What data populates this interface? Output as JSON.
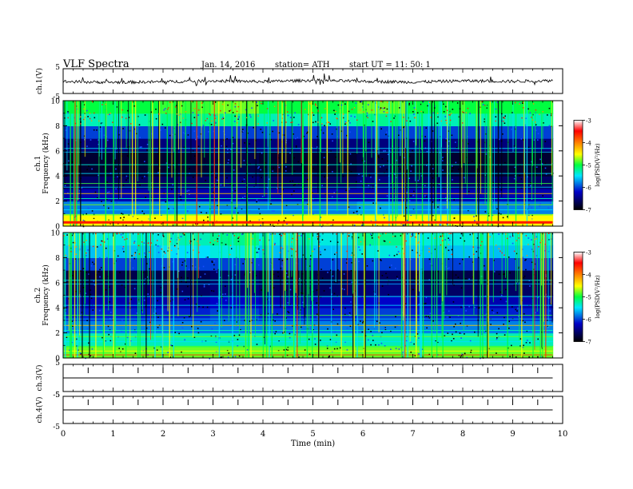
{
  "header": {
    "title": "VLF  Spectra",
    "date": "Jan. 14, 2016",
    "station": "station= ATH",
    "start_ut": "start  UT  =    11: 50: 1"
  },
  "xaxis": {
    "label": "Time  (min)",
    "ticks": [
      "0",
      "1",
      "2",
      "3",
      "4",
      "5",
      "6",
      "7",
      "8",
      "9",
      "10"
    ],
    "range": [
      0,
      10
    ],
    "data_end_min": 9.8
  },
  "panels": {
    "ch1_wave": {
      "ylabel": "ch.1(V)",
      "ticks": [
        "5",
        "-5"
      ],
      "range": [
        -5,
        5
      ]
    },
    "ch1_spec": {
      "ylabel": "ch.1",
      "ylabel2": "Frequency  (kHz)",
      "ticks": [
        "0",
        "2",
        "4",
        "6",
        "8",
        "10"
      ],
      "range": [
        0,
        10
      ]
    },
    "ch2_spec": {
      "ylabel": "ch.2",
      "ylabel2": "Frequency  (kHz)",
      "ticks": [
        "0",
        "2",
        "4",
        "6",
        "8",
        "10"
      ],
      "range": [
        0,
        10
      ]
    },
    "ch3_wave": {
      "ylabel": "ch.3(V)",
      "ticks": [
        "5",
        "-5"
      ],
      "range": [
        -5,
        5
      ]
    },
    "ch4_wave": {
      "ylabel": "ch.4(V)",
      "ticks": [
        "5",
        "-5"
      ],
      "range": [
        -5,
        5
      ]
    }
  },
  "colorbar": {
    "label": "log(PSD(V²/Hz)",
    "ticks": [
      "-3",
      "-4",
      "-5",
      "-6",
      "-7"
    ],
    "range": [
      -7,
      -3
    ],
    "colors": [
      "#000000",
      "#0000c8",
      "#00e6ff",
      "#00ff40",
      "#ffff00",
      "#ff8000",
      "#ff0000",
      "#ffffff"
    ]
  },
  "chart_data": [
    {
      "type": "line",
      "title": "",
      "xlabel": "",
      "ylabel": "ch.1(V)",
      "xlim": [
        0,
        10
      ],
      "ylim": [
        -5,
        5
      ],
      "series": [
        {
          "x": [
            0,
            1,
            2,
            3,
            4,
            5,
            6,
            7,
            8,
            9,
            9.8
          ],
          "values": [
            -0.2,
            -0.5,
            -0.3,
            0.1,
            -0.2,
            0.3,
            -0.1,
            -0.4,
            0.1,
            -0.1,
            0.2
          ]
        }
      ]
    },
    {
      "type": "heatmap",
      "title": "",
      "xlabel": "",
      "ylabel": "Frequency  (kHz)",
      "xlim": [
        0,
        10
      ],
      "ylim": [
        0,
        10
      ],
      "zlim": [
        -7,
        -3
      ],
      "x": [
        0,
        1,
        2,
        3,
        4,
        5,
        6,
        7,
        8,
        9
      ],
      "y": [
        0.5,
        1.5,
        2.5,
        3.5,
        4.5,
        5.5,
        6.5,
        7.5,
        8.5,
        9.5
      ],
      "z": [
        [
          -4.5,
          -4.5,
          -4.5,
          -4.5,
          -4.5,
          -4.5,
          -4.5,
          -4.5,
          -4.5,
          -4.5
        ],
        [
          -5.8,
          -5.8,
          -5.7,
          -5.8,
          -5.8,
          -5.8,
          -5.7,
          -5.8,
          -5.8,
          -5.8
        ],
        [
          -6.3,
          -6.3,
          -6.3,
          -6.3,
          -6.3,
          -6.3,
          -6.3,
          -6.3,
          -6.3,
          -6.3
        ],
        [
          -6.6,
          -6.6,
          -6.6,
          -6.5,
          -6.6,
          -6.6,
          -6.5,
          -6.6,
          -6.6,
          -6.6
        ],
        [
          -6.8,
          -6.8,
          -6.8,
          -6.7,
          -6.8,
          -6.8,
          -6.7,
          -6.8,
          -6.8,
          -6.8
        ],
        [
          -6.8,
          -6.8,
          -6.8,
          -6.7,
          -6.8,
          -6.8,
          -6.7,
          -6.8,
          -6.8,
          -6.8
        ],
        [
          -6.5,
          -6.5,
          -6.5,
          -6.5,
          -6.5,
          -6.5,
          -6.5,
          -6.5,
          -6.5,
          -6.5
        ],
        [
          -6.0,
          -6.0,
          -6.0,
          -6.0,
          -6.0,
          -6.0,
          -6.0,
          -6.0,
          -6.0,
          -6.0
        ],
        [
          -5.3,
          -5.3,
          -5.2,
          -5.2,
          -5.3,
          -5.3,
          -5.2,
          -5.3,
          -5.3,
          -5.3
        ],
        [
          -5.0,
          -5.0,
          -4.9,
          -4.8,
          -5.0,
          -5.0,
          -4.8,
          -5.0,
          -5.0,
          -5.0
        ]
      ]
    },
    {
      "type": "heatmap",
      "title": "",
      "xlabel": "",
      "ylabel": "Frequency  (kHz)",
      "xlim": [
        0,
        10
      ],
      "ylim": [
        0,
        10
      ],
      "zlim": [
        -7,
        -3
      ],
      "x": [
        0,
        1,
        2,
        3,
        4,
        5,
        6,
        7,
        8,
        9
      ],
      "y": [
        0.5,
        1.5,
        2.5,
        3.5,
        4.5,
        5.5,
        6.5,
        7.5,
        8.5,
        9.5
      ],
      "z": [
        [
          -4.8,
          -4.8,
          -4.8,
          -4.8,
          -4.8,
          -4.8,
          -4.8,
          -4.8,
          -4.8,
          -4.8
        ],
        [
          -5.3,
          -5.3,
          -5.3,
          -5.3,
          -5.3,
          -5.3,
          -5.3,
          -5.3,
          -5.3,
          -5.3
        ],
        [
          -5.8,
          -5.8,
          -5.8,
          -5.8,
          -5.8,
          -5.8,
          -5.8,
          -5.8,
          -5.8,
          -5.8
        ],
        [
          -6.1,
          -6.1,
          -6.1,
          -6.0,
          -6.1,
          -6.1,
          -6.0,
          -6.1,
          -6.1,
          -6.1
        ],
        [
          -6.3,
          -6.3,
          -6.3,
          -6.2,
          -6.3,
          -6.3,
          -6.2,
          -6.3,
          -6.3,
          -6.3
        ],
        [
          -6.6,
          -6.6,
          -6.6,
          -6.5,
          -6.6,
          -6.6,
          -6.5,
          -6.6,
          -6.6,
          -6.6
        ],
        [
          -6.7,
          -6.7,
          -6.7,
          -6.6,
          -6.7,
          -6.7,
          -6.6,
          -6.7,
          -6.7,
          -6.7
        ],
        [
          -6.0,
          -6.0,
          -6.0,
          -6.0,
          -6.0,
          -6.0,
          -6.0,
          -6.0,
          -6.0,
          -6.0
        ],
        [
          -5.6,
          -5.6,
          -5.5,
          -5.4,
          -5.6,
          -5.6,
          -5.4,
          -5.6,
          -5.6,
          -5.6
        ],
        [
          -5.4,
          -5.4,
          -5.3,
          -5.2,
          -5.4,
          -5.4,
          -5.2,
          -5.4,
          -5.4,
          -5.4
        ]
      ]
    },
    {
      "type": "line",
      "title": "",
      "xlabel": "",
      "ylabel": "ch.3(V)",
      "xlim": [
        0,
        10
      ],
      "ylim": [
        -5,
        5
      ],
      "series": [
        {
          "x": [
            0,
            9.8
          ],
          "values": [
            0,
            0
          ]
        }
      ]
    },
    {
      "type": "line",
      "title": "",
      "xlabel": "Time  (min)",
      "ylabel": "ch.4(V)",
      "xlim": [
        0,
        10
      ],
      "ylim": [
        -5,
        5
      ],
      "series": [
        {
          "x": [
            0,
            9.8
          ],
          "values": [
            0,
            0
          ]
        }
      ]
    }
  ]
}
